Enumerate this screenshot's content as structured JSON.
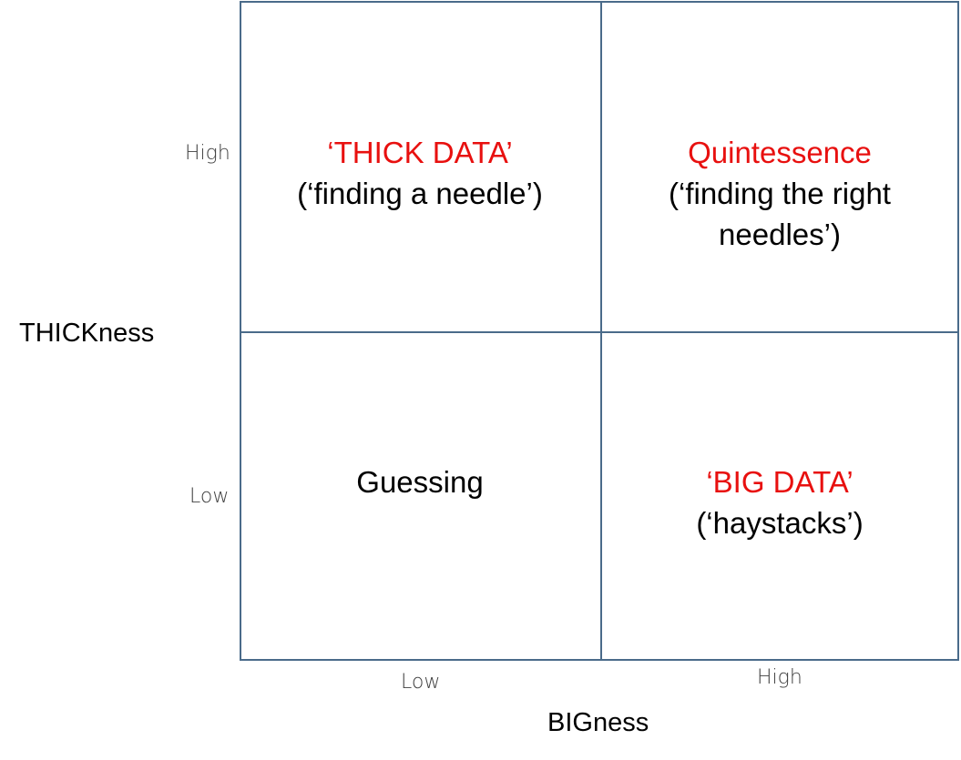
{
  "quadrants": {
    "top_left": {
      "title": "‘THICK DATA’",
      "subtitle": "(‘finding a needle’)"
    },
    "top_right": {
      "title": "Quintessence",
      "subtitle_line1": "(‘finding the right",
      "subtitle_line2": "needles’)"
    },
    "bottom_left": {
      "title": "Guessing"
    },
    "bottom_right": {
      "title": "‘BIG DATA’",
      "subtitle": "(‘haystacks’)"
    }
  },
  "y_axis": {
    "label": "THICKness",
    "ticks": {
      "high": "High",
      "low": "Low"
    }
  },
  "x_axis": {
    "label": "BIGness",
    "ticks": {
      "low": "Low",
      "high": "High"
    }
  },
  "colors": {
    "grid_line": "#4a6b8a",
    "highlight_text": "#e8100f",
    "body_text": "#000000",
    "tick_text": "#404040"
  }
}
